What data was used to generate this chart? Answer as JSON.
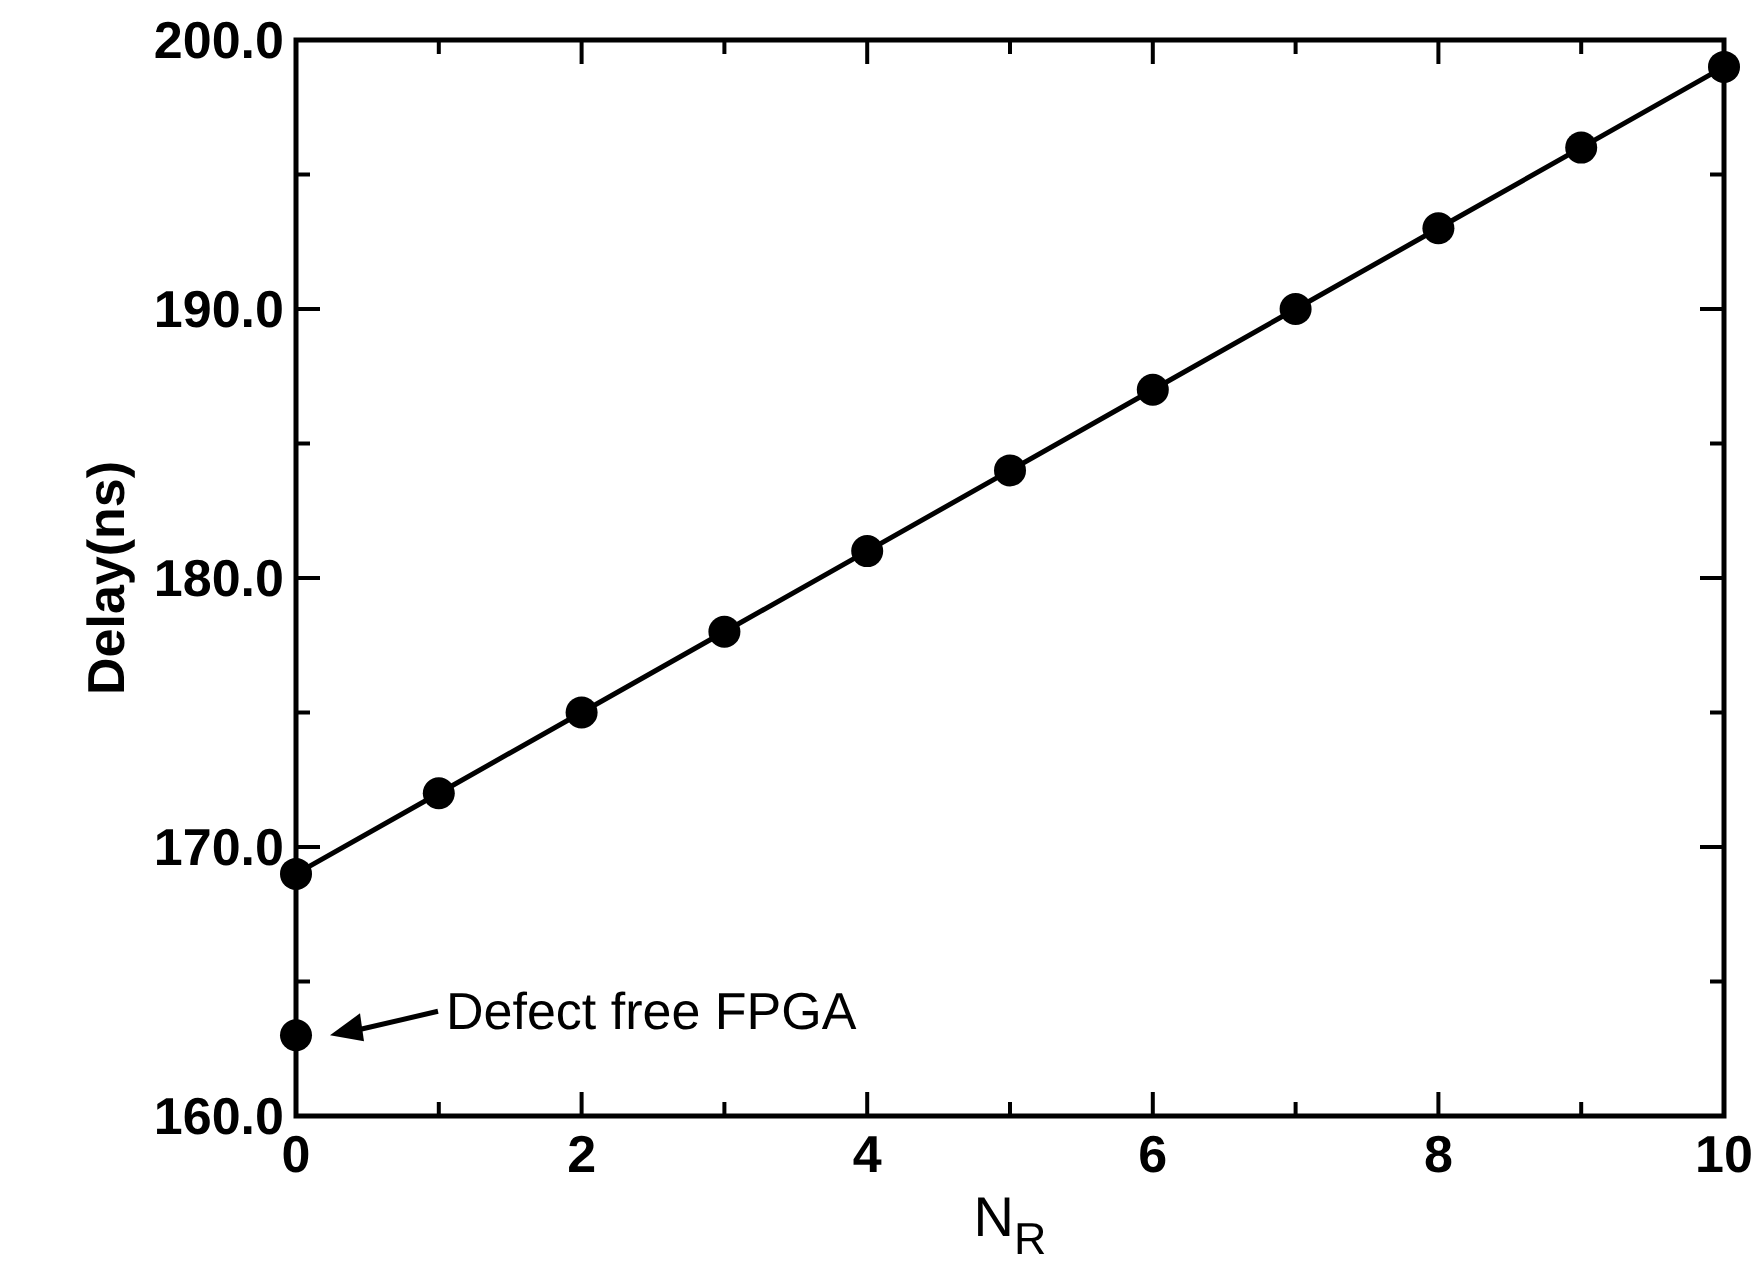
{
  "chart_data": {
    "type": "line",
    "xlabel": "N$_{R}$",
    "ylabel": "Delay(ns)",
    "xlim": [
      0,
      10
    ],
    "ylim": [
      160,
      200
    ],
    "xticks": [
      0,
      {
        "value": 1,
        "label": null
      },
      2,
      {
        "value": 3,
        "label": null
      },
      4,
      {
        "value": 5,
        "label": null
      },
      6,
      {
        "value": 7,
        "label": null
      },
      8,
      {
        "value": 9,
        "label": null
      },
      10
    ],
    "yticks": [
      {
        "value": 160,
        "label": "160.0"
      },
      {
        "value": 165,
        "label": null
      },
      {
        "value": 170,
        "label": "170.0"
      },
      {
        "value": 175,
        "label": null
      },
      {
        "value": 180,
        "label": "180.0"
      },
      {
        "value": 185,
        "label": null
      },
      {
        "value": 190,
        "label": "190.0"
      },
      {
        "value": 195,
        "label": null
      },
      {
        "value": 200,
        "label": "200.0"
      }
    ],
    "grid": false,
    "marker": "circle",
    "line_style": "solid",
    "series": [
      {
        "color": "#000000",
        "x": [
          0,
          1,
          2,
          3,
          4,
          5,
          6,
          7,
          8,
          9,
          10
        ],
        "values": [
          169,
          172,
          175,
          178,
          181,
          184,
          187,
          190,
          193,
          196,
          199
        ]
      },
      {
        "type": "scatter",
        "color": "#000000",
        "x": [
          0
        ],
        "values": [
          163
        ]
      }
    ],
    "annotations": [
      {
        "text": "Defect free FPGA",
        "x": 0,
        "y": 163
      }
    ]
  }
}
